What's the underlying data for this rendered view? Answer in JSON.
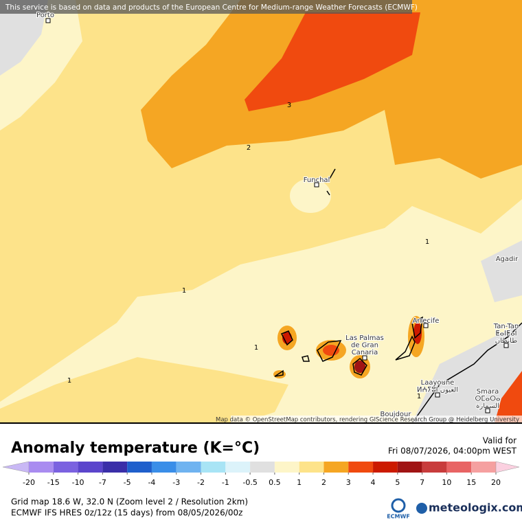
{
  "banner": "This service is based on data and products of the European Centre for Medium-range Weather Forecasts (ECMWF)",
  "map": {
    "places": [
      {
        "lines": [
          "Porto"
        ]
      },
      {
        "lines": [
          "Funchal"
        ]
      },
      {
        "lines": [
          "Agadir"
        ]
      },
      {
        "lines": [
          "Arrecife"
        ]
      },
      {
        "lines": [
          "Las Palmas",
          "de Gran",
          "Canaria"
        ]
      },
      {
        "lines": [
          "Tan-Tan",
          "ⵟⴰⵏⵟⴰⵏ",
          "طانطان"
        ]
      },
      {
        "lines": [
          "Laayoune",
          "ⵍⵄⵢⵓⵏ العيون"
        ]
      },
      {
        "lines": [
          "Smara",
          "ⵙⵎⴰⵔⴰ",
          "السمارة"
        ]
      },
      {
        "lines": [
          "Boujdour"
        ]
      }
    ],
    "contour_labels": [
      3,
      2,
      1,
      1,
      1,
      1,
      1
    ],
    "attribution": "Map data © OpenStreetMap contributors, rendering GIScience Research Group @ Heidelberg University"
  },
  "legend": {
    "title": "Anomaly temperature (K=°C)",
    "valid_label": "Valid for",
    "valid_time": "Fri 08/07/2026, 04:00pm WEST",
    "ticks": [
      -20,
      -15,
      -10,
      -7,
      -5,
      -4,
      -3,
      -2,
      -1,
      -0.5,
      0.5,
      1,
      2,
      3,
      4,
      5,
      7,
      10,
      15,
      20
    ],
    "colors": [
      "#c9b8f5",
      "#a98cf0",
      "#7b62e0",
      "#5b45cc",
      "#3a2ea8",
      "#1f5fcc",
      "#3a8ee8",
      "#6fb3f0",
      "#a8e4f5",
      "#dcf3fa",
      "#e0e0e0",
      "#fdf5c8",
      "#fde38a",
      "#f5a623",
      "#f04a0f",
      "#cc1a00",
      "#a01414",
      "#c83c3c",
      "#e86464",
      "#f5a0a0",
      "#fbd0e0"
    ]
  },
  "footer": {
    "line1": "Grid map 18.6 W, 32.0 N (Zoom level 2 / Resolution 2km)",
    "line2": "ECMWF IFS HRES 0z/12z (15 days)  from  08/05/2026/00z",
    "ecmwf": "ECMWF",
    "brand": "meteologix.com"
  }
}
